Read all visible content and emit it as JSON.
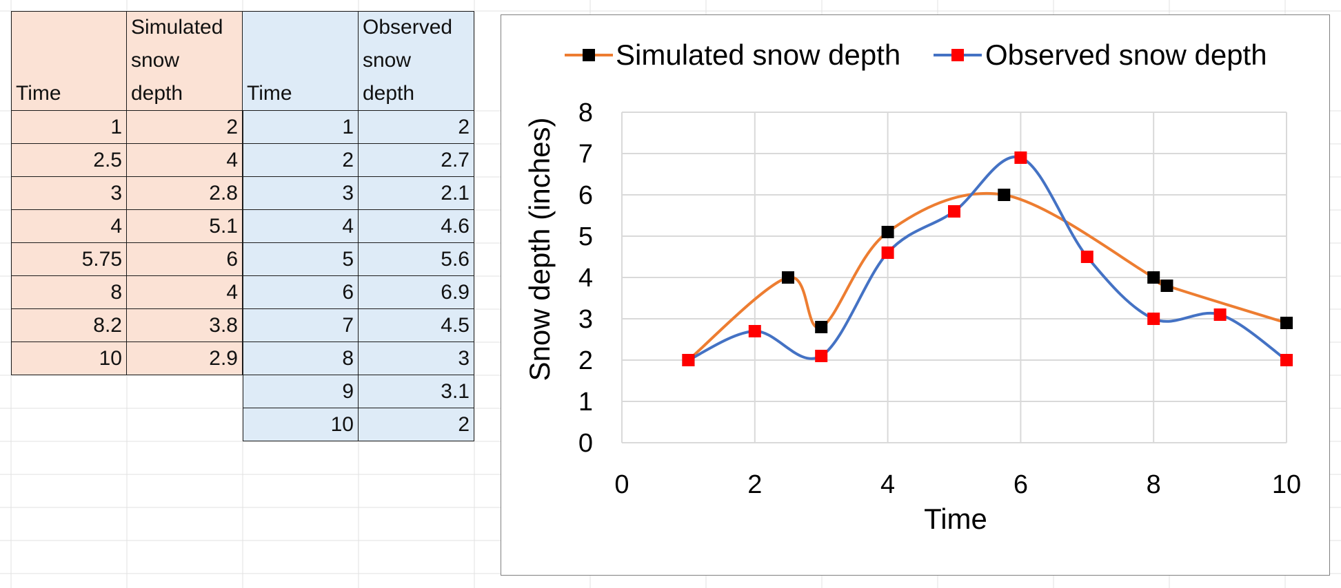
{
  "sheet": {
    "sim_header_time": "Time",
    "sim_header_value": [
      "Simulated",
      "snow",
      "depth"
    ],
    "obs_header_time": "Time",
    "obs_header_value": [
      "Observed",
      "snow",
      "depth"
    ],
    "sim_rows": [
      [
        "1",
        "2"
      ],
      [
        "2.5",
        "4"
      ],
      [
        "3",
        "2.8"
      ],
      [
        "4",
        "5.1"
      ],
      [
        "5.75",
        "6"
      ],
      [
        "8",
        "4"
      ],
      [
        "8.2",
        "3.8"
      ],
      [
        "10",
        "2.9"
      ]
    ],
    "obs_rows": [
      [
        "1",
        "2"
      ],
      [
        "2",
        "2.7"
      ],
      [
        "3",
        "2.1"
      ],
      [
        "4",
        "4.6"
      ],
      [
        "5",
        "5.6"
      ],
      [
        "6",
        "6.9"
      ],
      [
        "7",
        "4.5"
      ],
      [
        "8",
        "3"
      ],
      [
        "9",
        "3.1"
      ],
      [
        "10",
        "2"
      ]
    ]
  },
  "colors": {
    "sim_fill": "#fbe2d5",
    "obs_fill": "#deebf7",
    "sim_line": "#ed7d31",
    "obs_line": "#4472c4",
    "sim_marker": "#000000",
    "obs_marker": "#ff0000",
    "gridline": "#d9d9d9"
  },
  "chart_data": {
    "type": "scatter",
    "xlabel": "Time",
    "ylabel": "Snow depth (inches)",
    "xlim": [
      0,
      10
    ],
    "ylim": [
      0,
      8
    ],
    "xticks": [
      0,
      2,
      4,
      6,
      8,
      10
    ],
    "yticks": [
      0,
      1,
      2,
      3,
      4,
      5,
      6,
      7,
      8
    ],
    "grid": true,
    "legend_position": "top",
    "smooth_lines": true,
    "series": [
      {
        "name": "Simulated snow depth",
        "x": [
          1,
          2.5,
          3,
          4,
          5.75,
          8,
          8.2,
          10
        ],
        "y": [
          2,
          4,
          2.8,
          5.1,
          6,
          4,
          3.8,
          2.9
        ]
      },
      {
        "name": "Observed snow depth",
        "x": [
          1,
          2,
          3,
          4,
          5,
          6,
          7,
          8,
          9,
          10
        ],
        "y": [
          2,
          2.7,
          2.1,
          4.6,
          5.6,
          6.9,
          4.5,
          3,
          3.1,
          2
        ]
      }
    ]
  }
}
